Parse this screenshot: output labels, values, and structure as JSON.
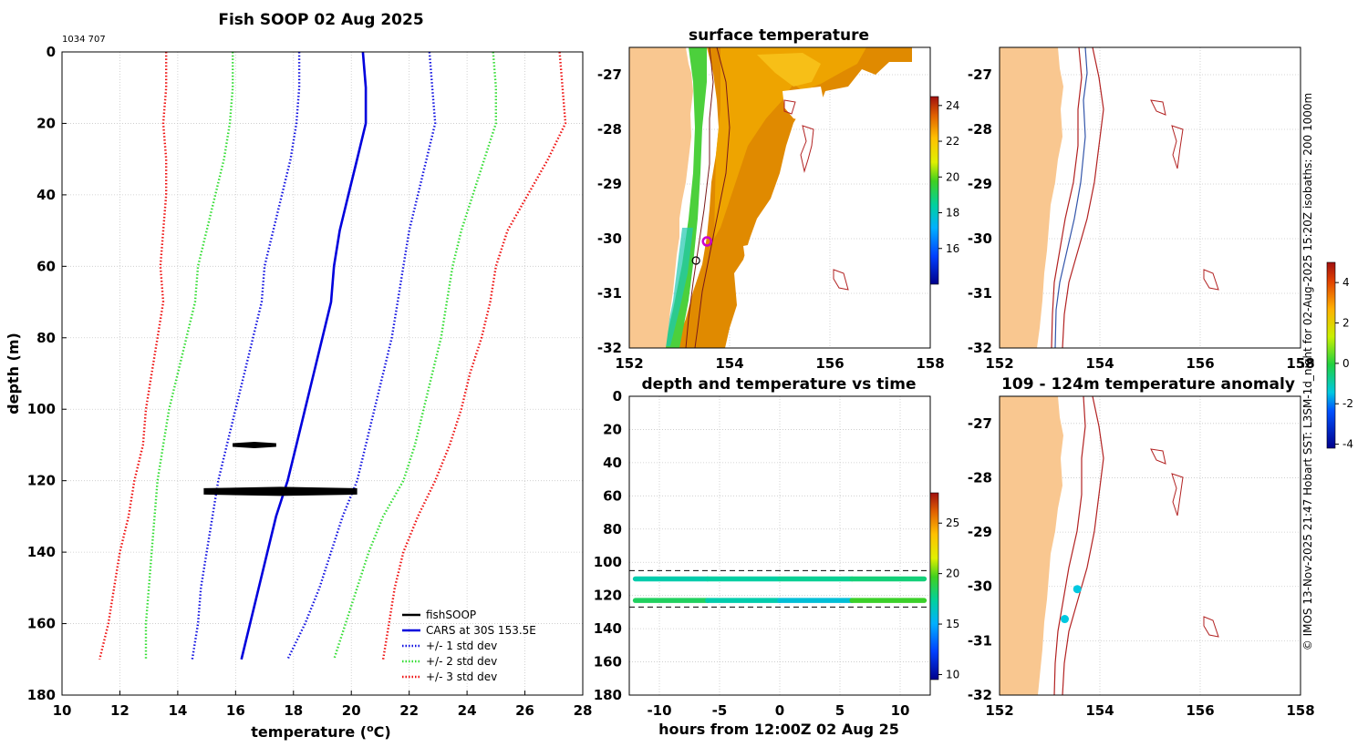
{
  "figure": {
    "main_title": "Fish SOOP 02 Aug 2025",
    "id_label": "1034 707",
    "credit": "© IMOS 13-Nov-2025 21:47 Hobart SST: L3SM-1d_night for 02-Aug-2025 15:20Z isobaths: 200  1000m"
  },
  "colors": {
    "cars": "#0000dd",
    "std1": "#1010e0",
    "std2": "#33dd33",
    "std3": "#ee1111",
    "fish": "#000000",
    "land": "#f9c790",
    "isobath200": "#3355aa",
    "isobath1000": "#b22222"
  },
  "chart_data": [
    {
      "id": "profile",
      "type": "line",
      "title": "Fish SOOP 02 Aug 2025",
      "xlabel": "temperature (°C)",
      "ylabel": "depth (m)",
      "xlim": [
        10,
        28
      ],
      "ylim": [
        180,
        0
      ],
      "xticks": [
        10,
        12,
        14,
        16,
        18,
        20,
        22,
        24,
        26,
        28
      ],
      "yticks": [
        0,
        20,
        40,
        60,
        80,
        100,
        120,
        140,
        160,
        180
      ],
      "depths": [
        0,
        10,
        20,
        30,
        40,
        50,
        60,
        70,
        80,
        90,
        100,
        110,
        120,
        130,
        140,
        150,
        160,
        170
      ],
      "series": [
        {
          "name": "CARS at 30S 153.5E",
          "style": "solid",
          "values": [
            20.4,
            20.5,
            20.5,
            20.2,
            19.9,
            19.6,
            19.4,
            19.3,
            19.0,
            18.7,
            18.4,
            18.1,
            17.8,
            17.4,
            17.1,
            16.8,
            16.5,
            16.2
          ]
        },
        {
          "name": "+/- 1 std dev",
          "style": "dotted",
          "lower": [
            18.2,
            18.2,
            18.1,
            17.9,
            17.6,
            17.3,
            17.0,
            16.9,
            16.6,
            16.3,
            16.0,
            15.7,
            15.4,
            15.2,
            15.0,
            14.8,
            14.7,
            14.5
          ],
          "upper": [
            22.7,
            22.8,
            22.9,
            22.6,
            22.3,
            22.0,
            21.8,
            21.6,
            21.4,
            21.1,
            20.8,
            20.5,
            20.2,
            19.7,
            19.3,
            18.9,
            18.4,
            17.8
          ]
        },
        {
          "name": "+/- 2 std dev",
          "style": "dotted",
          "lower": [
            15.9,
            15.9,
            15.8,
            15.6,
            15.3,
            15.0,
            14.7,
            14.6,
            14.3,
            14.0,
            13.7,
            13.5,
            13.3,
            13.2,
            13.1,
            13.0,
            12.9,
            12.9
          ],
          "upper": [
            24.9,
            25.0,
            25.0,
            24.6,
            24.2,
            23.8,
            23.5,
            23.3,
            23.1,
            22.8,
            22.5,
            22.2,
            21.8,
            21.1,
            20.6,
            20.2,
            19.8,
            19.4
          ]
        },
        {
          "name": "+/- 3 std dev",
          "style": "dotted",
          "lower": [
            13.6,
            13.6,
            13.5,
            13.6,
            13.6,
            13.5,
            13.4,
            13.5,
            13.3,
            13.1,
            12.9,
            12.8,
            12.5,
            12.3,
            12.0,
            11.8,
            11.6,
            11.3
          ],
          "upper": [
            27.2,
            27.3,
            27.4,
            26.8,
            26.1,
            25.4,
            25.0,
            24.8,
            24.5,
            24.1,
            23.8,
            23.4,
            22.9,
            22.3,
            21.8,
            21.5,
            21.3,
            21.1
          ]
        }
      ],
      "fishsoop": [
        {
          "depth": 110,
          "tmin": 15.9,
          "tmax": 17.4
        },
        {
          "depth": 123,
          "tmin": 14.9,
          "tmax": 20.2
        }
      ],
      "legend": [
        "fishSOOP",
        "CARS at 30S 153.5E",
        "+/- 1 std dev",
        "+/- 2 std dev",
        "+/- 3 std dev"
      ],
      "legend_loc": "bottom-right"
    },
    {
      "id": "sst_map",
      "type": "heatmap",
      "title": "surface temperature",
      "xlim": [
        152,
        158
      ],
      "ylim": [
        -32,
        -26.5
      ],
      "xticks": [
        152,
        154,
        156,
        158
      ],
      "yticks": [
        -27,
        -28,
        -29,
        -30,
        -31,
        -32
      ],
      "colorbar": {
        "min": 14,
        "max": 24.5,
        "ticks": [
          16,
          18,
          20,
          22,
          24
        ]
      },
      "markers": [
        {
          "lon": 153.55,
          "lat": -30.05,
          "color": "#cc00cc"
        },
        {
          "lon": 153.33,
          "lat": -30.4,
          "color": "#000000"
        }
      ]
    },
    {
      "id": "isobath_map",
      "type": "scatter",
      "title": "",
      "xlim": [
        152,
        158
      ],
      "ylim": [
        -32,
        -26.5
      ],
      "xticks": [
        152,
        154,
        156,
        158
      ],
      "yticks": [
        -27,
        -28,
        -29,
        -30,
        -31,
        -32
      ]
    },
    {
      "id": "depth_time",
      "type": "scatter",
      "title": "depth and temperature vs time",
      "xlabel": "hours from 12:00Z 02 Aug 25",
      "xlim": [
        -12.5,
        12.5
      ],
      "ylim": [
        180,
        0
      ],
      "xticks": [
        -10,
        -5,
        0,
        5,
        10
      ],
      "yticks": [
        0,
        20,
        40,
        60,
        80,
        100,
        120,
        140,
        160,
        180
      ],
      "band": [
        105,
        127
      ],
      "tracks": [
        {
          "depth": 110,
          "temp": [
            17.0,
            17.2,
            17.5,
            18.0
          ]
        },
        {
          "depth": 123,
          "temp": [
            18.5,
            17.0,
            16.0,
            19.5
          ]
        }
      ],
      "colorbar": {
        "min": 9.5,
        "max": 28,
        "ticks": [
          10,
          15,
          20,
          25
        ]
      }
    },
    {
      "id": "anomaly_map",
      "type": "scatter",
      "title": "109 - 124m temperature anomaly",
      "xlim": [
        152,
        158
      ],
      "ylim": [
        -32,
        -26.5
      ],
      "xticks": [
        152,
        154,
        156,
        158
      ],
      "yticks": [
        -27,
        -28,
        -29,
        -30,
        -31,
        -32
      ],
      "points": [
        {
          "lon": 153.55,
          "lat": -30.05,
          "anomaly": -1.5
        },
        {
          "lon": 153.3,
          "lat": -30.6,
          "anomaly": -1.9
        }
      ],
      "colorbar": {
        "min": -4.2,
        "max": 5.0,
        "ticks": [
          -4,
          -2,
          0,
          2,
          4
        ]
      }
    }
  ]
}
